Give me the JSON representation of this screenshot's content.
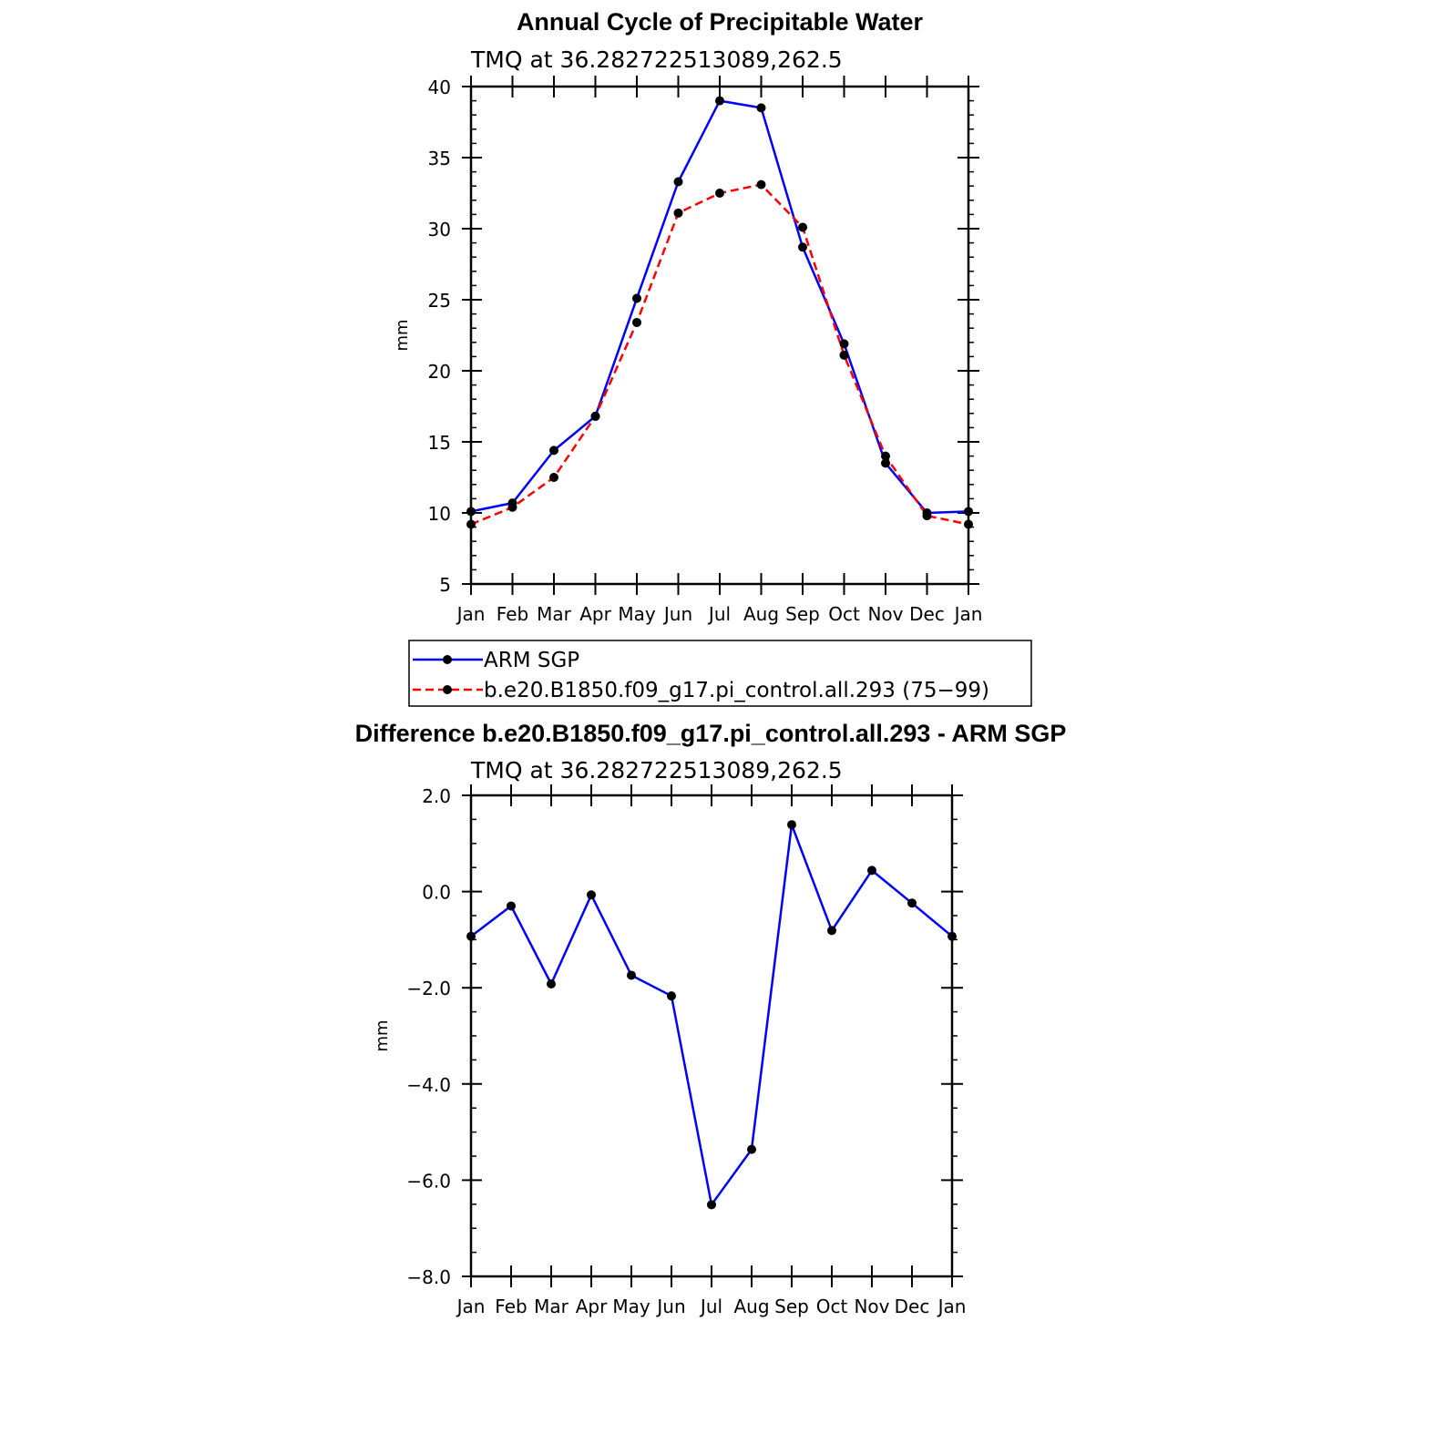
{
  "chart_data": [
    {
      "type": "line",
      "title": "Annual Cycle of Precipitable Water",
      "subtitle": "TMQ at 36.282722513089,262.5",
      "xlabel": "",
      "ylabel": "mm",
      "categories": [
        "Jan",
        "Feb",
        "Mar",
        "Apr",
        "May",
        "Jun",
        "Jul",
        "Aug",
        "Sep",
        "Oct",
        "Nov",
        "Dec",
        "Jan"
      ],
      "ylim": [
        5,
        40
      ],
      "y_ticks": [
        5,
        10,
        15,
        20,
        25,
        30,
        35,
        40
      ],
      "y_minor_step": 1,
      "legend_position": "bottom",
      "series": [
        {
          "name": "ARM SGP",
          "color": "#0000ff",
          "dash": "solid",
          "values": [
            10.1,
            10.7,
            14.4,
            16.8,
            25.1,
            33.3,
            39.0,
            38.5,
            28.7,
            21.9,
            13.5,
            10.0,
            10.1
          ]
        },
        {
          "name": "b.e20.B1850.f09_g17.pi_control.all.293 (75−99)",
          "color": "#ff0000",
          "dash": "dashed",
          "values": [
            9.2,
            10.4,
            12.5,
            16.8,
            23.4,
            31.1,
            32.5,
            33.1,
            30.1,
            21.1,
            14.0,
            9.8,
            9.2
          ]
        }
      ]
    },
    {
      "type": "line",
      "title": "Difference b.e20.B1850.f09_g17.pi_control.all.293 - ARM SGP",
      "subtitle": "TMQ at 36.282722513089,262.5",
      "xlabel": "",
      "ylabel": "mm",
      "categories": [
        "Jan",
        "Feb",
        "Mar",
        "Apr",
        "May",
        "Jun",
        "Jul",
        "Aug",
        "Sep",
        "Oct",
        "Nov",
        "Dec",
        "Jan"
      ],
      "ylim": [
        -8.0,
        2.0
      ],
      "y_ticks": [
        -8.0,
        -6.0,
        -4.0,
        -2.0,
        0.0,
        2.0
      ],
      "y_tick_labels": [
        "−8.0",
        "−6.0",
        "−4.0",
        "−2.0",
        "0.0",
        "2.0"
      ],
      "y_minor_step": 0.5,
      "series": [
        {
          "name": "Difference",
          "color": "#0000ff",
          "dash": "solid",
          "values": [
            -0.93,
            -0.3,
            -1.92,
            -0.07,
            -1.74,
            -2.17,
            -6.51,
            -5.36,
            1.39,
            -0.81,
            0.44,
            -0.24,
            -0.93
          ]
        }
      ]
    }
  ]
}
